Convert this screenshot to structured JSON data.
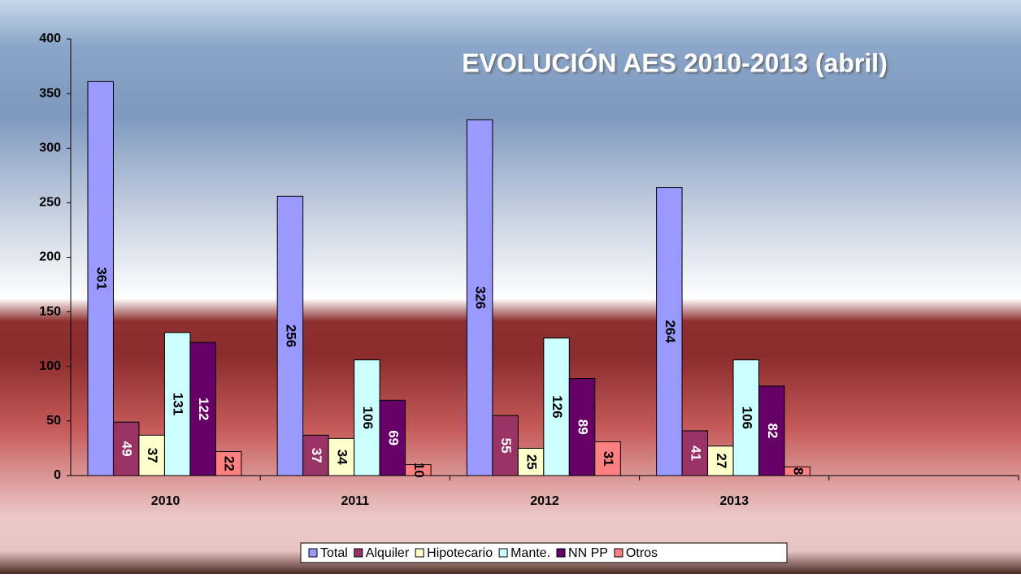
{
  "chart_data": {
    "type": "bar",
    "title": "EVOLUCIÓN AES 2010-2013 (abril)",
    "categories": [
      "2010",
      "2011",
      "2012",
      "2013",
      null
    ],
    "series": [
      {
        "name": "Total",
        "color": "#9999ff",
        "values": [
          361,
          256,
          326,
          264,
          null
        ]
      },
      {
        "name": "Alquiler",
        "color": "#993366",
        "values": [
          49,
          37,
          55,
          41,
          null
        ]
      },
      {
        "name": "Hipotecario",
        "color": "#ffffcc",
        "values": [
          37,
          34,
          25,
          27,
          null
        ]
      },
      {
        "name": "Mante.",
        "color": "#ccffff",
        "values": [
          131,
          106,
          126,
          106,
          null
        ]
      },
      {
        "name": "NN PP",
        "color": "#660066",
        "values": [
          122,
          69,
          89,
          82,
          null
        ]
      },
      {
        "name": "Otros",
        "color": "#ff8080",
        "values": [
          22,
          10,
          31,
          8,
          null
        ]
      }
    ],
    "ylim": [
      0,
      400
    ],
    "yticks": [
      0,
      50,
      100,
      150,
      200,
      250,
      300,
      350,
      400
    ],
    "legend": "bottom"
  }
}
